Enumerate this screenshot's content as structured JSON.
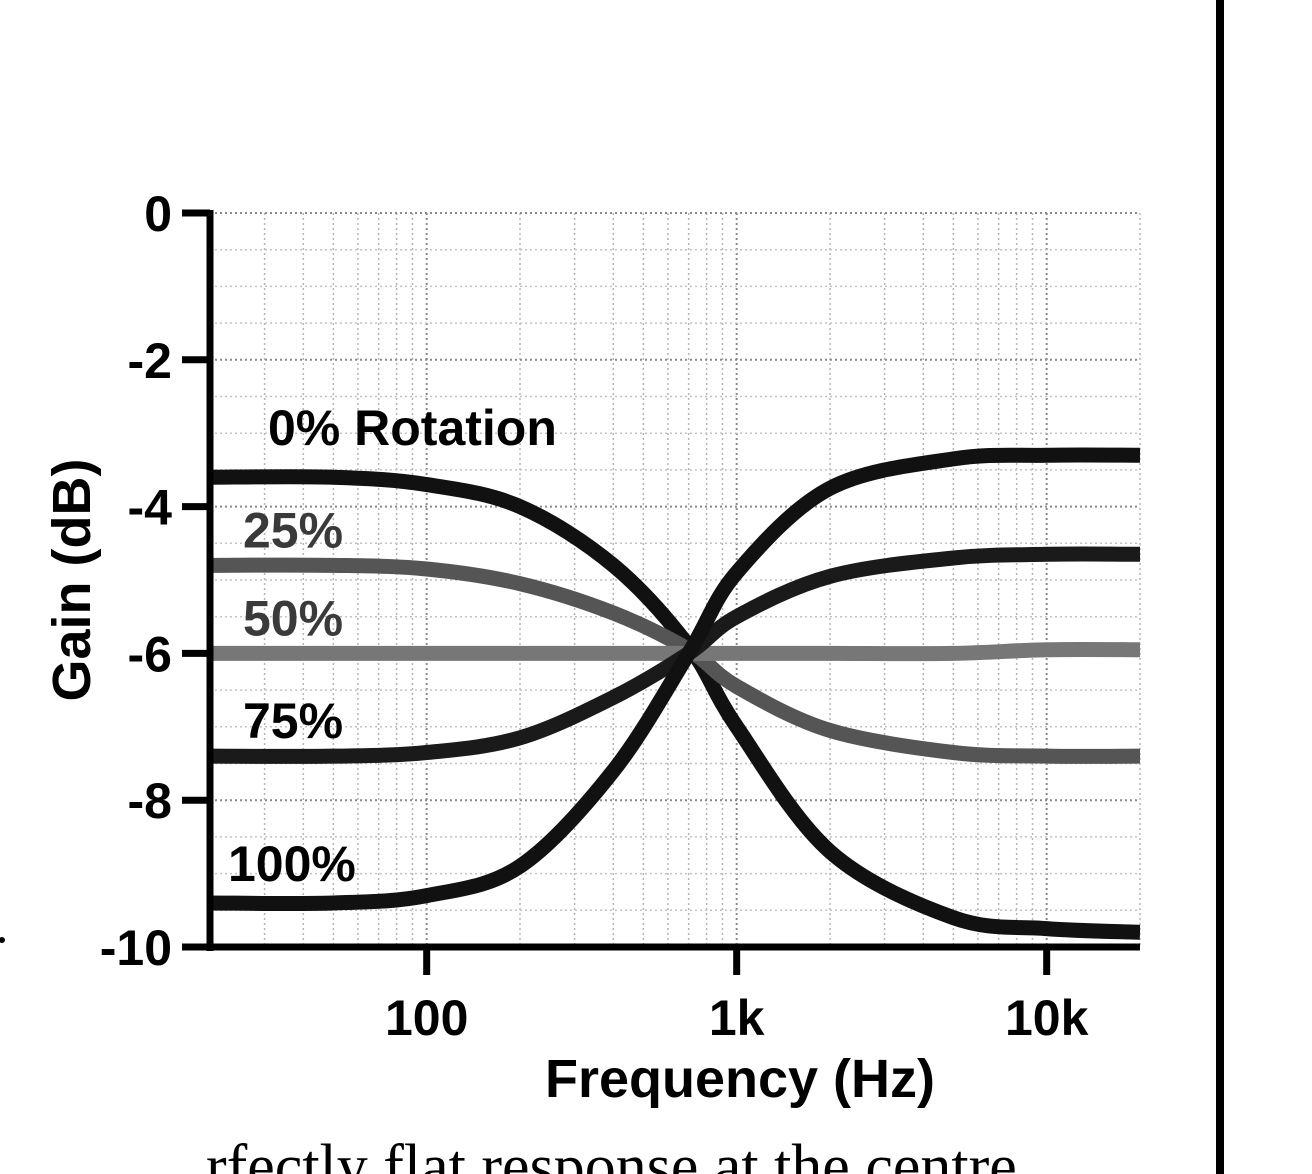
{
  "chart_data": {
    "type": "line",
    "title": "",
    "xlabel": "Frequency (Hz)",
    "ylabel": "Gain (dB)",
    "x_scale": "log",
    "xlim": [
      20,
      20000
    ],
    "ylim": [
      -10,
      0
    ],
    "x_ticks": [
      {
        "value": 100,
        "label": "100"
      },
      {
        "value": 1000,
        "label": "1k"
      },
      {
        "value": 10000,
        "label": "10k"
      }
    ],
    "y_ticks": [
      {
        "value": 0,
        "label": "0"
      },
      {
        "value": -2,
        "label": "-2"
      },
      {
        "value": -4,
        "label": "-4"
      },
      {
        "value": -6,
        "label": "-6"
      },
      {
        "value": -8,
        "label": "-8"
      },
      {
        "value": -10,
        "label": "-10"
      }
    ],
    "grid": true,
    "legend": "none",
    "series": [
      {
        "name": "0% Rotation",
        "color": "#111111",
        "x": [
          20,
          50,
          100,
          200,
          400,
          700,
          1000,
          2000,
          5000,
          10000,
          20000
        ],
        "y": [
          -3.6,
          -3.6,
          -3.7,
          -4.0,
          -4.8,
          -5.9,
          -7.0,
          -8.7,
          -9.6,
          -9.75,
          -9.8
        ]
      },
      {
        "name": "25%",
        "color": "#555555",
        "x": [
          20,
          50,
          100,
          200,
          400,
          700,
          1000,
          2000,
          5000,
          10000,
          20000
        ],
        "y": [
          -4.8,
          -4.8,
          -4.85,
          -5.05,
          -5.45,
          -5.95,
          -6.45,
          -7.05,
          -7.35,
          -7.4,
          -7.4
        ]
      },
      {
        "name": "50%",
        "color": "#777777",
        "x": [
          20,
          50,
          100,
          200,
          400,
          700,
          1000,
          2000,
          5000,
          10000,
          20000
        ],
        "y": [
          -6.0,
          -6.0,
          -6.0,
          -6.0,
          -6.0,
          -6.0,
          -6.0,
          -6.0,
          -6.0,
          -5.95,
          -5.95
        ]
      },
      {
        "name": "75%",
        "color": "#1a1a1a",
        "x": [
          20,
          50,
          100,
          200,
          400,
          700,
          1000,
          2000,
          5000,
          10000,
          20000
        ],
        "y": [
          -7.4,
          -7.4,
          -7.35,
          -7.15,
          -6.6,
          -6.0,
          -5.5,
          -4.95,
          -4.7,
          -4.65,
          -4.65
        ]
      },
      {
        "name": "100%",
        "color": "#111111",
        "x": [
          20,
          50,
          100,
          200,
          400,
          700,
          1000,
          2000,
          5000,
          10000,
          20000
        ],
        "y": [
          -9.4,
          -9.4,
          -9.3,
          -8.9,
          -7.6,
          -6.0,
          -4.9,
          -3.75,
          -3.35,
          -3.3,
          -3.3
        ]
      }
    ]
  },
  "caption": {
    "text": "rfectly flat response at the centre"
  }
}
